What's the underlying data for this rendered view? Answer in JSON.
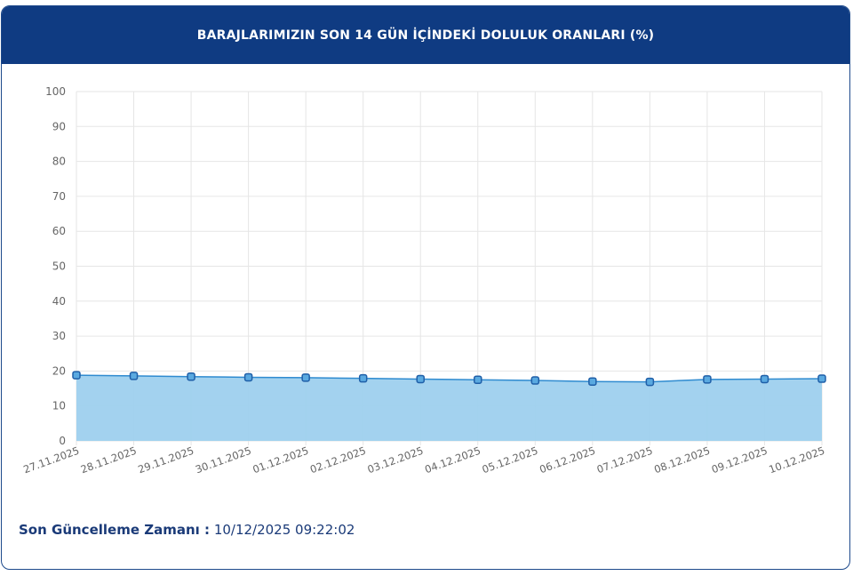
{
  "header": {
    "title": "BARAJLARIMIZIN SON 14 GÜN İÇİNDEKİ DOLULUK ORANLARI (%)"
  },
  "chart_data": {
    "type": "area",
    "title": "BARAJLARIMIZIN SON 14 GÜN İÇİNDEKİ DOLULUK ORANLARI (%)",
    "xlabel": "",
    "ylabel": "",
    "ylim": [
      0,
      100
    ],
    "yticks": [
      0,
      10,
      20,
      30,
      40,
      50,
      60,
      70,
      80,
      90,
      100
    ],
    "grid": true,
    "categories": [
      "27.11.2025",
      "28.11.2025",
      "29.11.2025",
      "30.11.2025",
      "01.12.2025",
      "02.12.2025",
      "03.12.2025",
      "04.12.2025",
      "05.12.2025",
      "06.12.2025",
      "07.12.2025",
      "08.12.2025",
      "09.12.2025",
      "10.12.2025"
    ],
    "values": [
      18.8,
      18.6,
      18.4,
      18.2,
      18.1,
      17.9,
      17.7,
      17.5,
      17.3,
      17.0,
      16.9,
      17.6,
      17.7,
      17.8
    ],
    "line_color": "#2f8bd0",
    "fill_color": "#9ed0ee",
    "marker_color": "#1f5fa8"
  },
  "footer": {
    "label": "Son Güncelleme Zamanı :",
    "value": "10/12/2025 09:22:02"
  }
}
